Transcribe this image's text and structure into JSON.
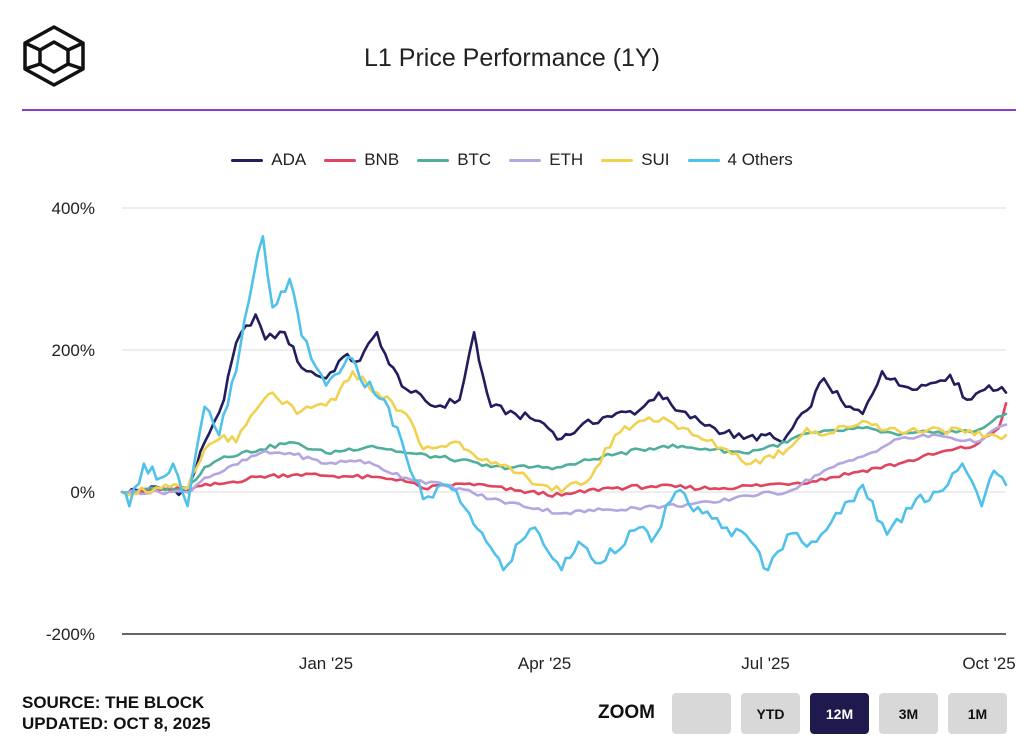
{
  "header": {
    "title": "L1 Price Performance (1Y)"
  },
  "footer": {
    "source": "SOURCE: THE BLOCK",
    "updated": "UPDATED: OCT 8, 2025"
  },
  "zoom": {
    "label": "ZOOM",
    "buttons": [
      {
        "label": "",
        "active": false
      },
      {
        "label": "YTD",
        "active": false
      },
      {
        "label": "12M",
        "active": true
      },
      {
        "label": "3M",
        "active": false
      },
      {
        "label": "1M",
        "active": false
      }
    ]
  },
  "colors": {
    "accent_rule": "#8a3ec6",
    "active_button": "#1f1a4d"
  },
  "chart_data": {
    "type": "line",
    "title": "L1 Price Performance (1Y)",
    "yaxis": {
      "ticks": [
        "400%",
        "200%",
        "0%",
        "-200%"
      ],
      "tick_values": [
        400,
        200,
        0,
        -200
      ],
      "ylim": [
        -200,
        400
      ],
      "grid": true
    },
    "xaxis": {
      "labels": [
        "Jan '25",
        "Apr '25",
        "Jul '25",
        "Oct '25"
      ],
      "label_dates": [
        "2025-01-01",
        "2025-04-01",
        "2025-07-01",
        "2025-10-01"
      ],
      "range": [
        "2024-10-09",
        "2025-10-08"
      ]
    },
    "legend_position": "top",
    "series": [
      {
        "name": "ADA",
        "color": "#231d5e",
        "points": [
          [
            "2024-10-09",
            0
          ],
          [
            "2024-10-25",
            5
          ],
          [
            "2024-11-05",
            0
          ],
          [
            "2024-11-12",
            70
          ],
          [
            "2024-11-20",
            130
          ],
          [
            "2024-11-25",
            210
          ],
          [
            "2024-12-03",
            250
          ],
          [
            "2024-12-07",
            215
          ],
          [
            "2024-12-15",
            225
          ],
          [
            "2024-12-22",
            175
          ],
          [
            "2025-01-01",
            160
          ],
          [
            "2025-01-08",
            190
          ],
          [
            "2025-01-15",
            185
          ],
          [
            "2025-01-22",
            225
          ],
          [
            "2025-01-27",
            180
          ],
          [
            "2025-02-03",
            145
          ],
          [
            "2025-02-15",
            120
          ],
          [
            "2025-02-25",
            130
          ],
          [
            "2025-03-03",
            225
          ],
          [
            "2025-03-05",
            185
          ],
          [
            "2025-03-10",
            120
          ],
          [
            "2025-03-20",
            110
          ],
          [
            "2025-03-30",
            100
          ],
          [
            "2025-04-08",
            75
          ],
          [
            "2025-04-15",
            90
          ],
          [
            "2025-04-25",
            105
          ],
          [
            "2025-05-10",
            115
          ],
          [
            "2025-05-18",
            140
          ],
          [
            "2025-05-25",
            115
          ],
          [
            "2025-06-10",
            90
          ],
          [
            "2025-06-22",
            75
          ],
          [
            "2025-07-01",
            80
          ],
          [
            "2025-07-08",
            70
          ],
          [
            "2025-07-18",
            115
          ],
          [
            "2025-07-25",
            160
          ],
          [
            "2025-08-03",
            120
          ],
          [
            "2025-08-10",
            110
          ],
          [
            "2025-08-18",
            170
          ],
          [
            "2025-08-25",
            150
          ],
          [
            "2025-09-05",
            150
          ],
          [
            "2025-09-15",
            165
          ],
          [
            "2025-09-22",
            130
          ],
          [
            "2025-10-01",
            150
          ],
          [
            "2025-10-08",
            140
          ]
        ]
      },
      {
        "name": "BNB",
        "color": "#e0445e",
        "points": [
          [
            "2024-10-09",
            0
          ],
          [
            "2024-11-05",
            5
          ],
          [
            "2024-11-20",
            12
          ],
          [
            "2024-12-05",
            22
          ],
          [
            "2024-12-20",
            25
          ],
          [
            "2025-01-10",
            22
          ],
          [
            "2025-02-01",
            18
          ],
          [
            "2025-02-10",
            5
          ],
          [
            "2025-03-01",
            12
          ],
          [
            "2025-03-20",
            2
          ],
          [
            "2025-04-08",
            -5
          ],
          [
            "2025-04-25",
            5
          ],
          [
            "2025-05-15",
            8
          ],
          [
            "2025-06-10",
            5
          ],
          [
            "2025-07-01",
            10
          ],
          [
            "2025-07-20",
            15
          ],
          [
            "2025-08-10",
            30
          ],
          [
            "2025-08-25",
            40
          ],
          [
            "2025-09-10",
            55
          ],
          [
            "2025-09-25",
            65
          ],
          [
            "2025-10-05",
            90
          ],
          [
            "2025-10-08",
            125
          ]
        ]
      },
      {
        "name": "BTC",
        "color": "#4fae9c",
        "points": [
          [
            "2024-10-09",
            0
          ],
          [
            "2024-10-25",
            5
          ],
          [
            "2024-11-05",
            5
          ],
          [
            "2024-11-12",
            35
          ],
          [
            "2024-11-20",
            50
          ],
          [
            "2024-12-05",
            60
          ],
          [
            "2024-12-17",
            70
          ],
          [
            "2025-01-01",
            55
          ],
          [
            "2025-01-20",
            65
          ],
          [
            "2025-02-03",
            55
          ],
          [
            "2025-02-25",
            45
          ],
          [
            "2025-03-10",
            35
          ],
          [
            "2025-04-08",
            35
          ],
          [
            "2025-04-25",
            50
          ],
          [
            "2025-05-20",
            65
          ],
          [
            "2025-06-10",
            60
          ],
          [
            "2025-06-22",
            55
          ],
          [
            "2025-07-10",
            70
          ],
          [
            "2025-07-15",
            80
          ],
          [
            "2025-08-10",
            90
          ],
          [
            "2025-08-25",
            80
          ],
          [
            "2025-09-10",
            85
          ],
          [
            "2025-09-25",
            85
          ],
          [
            "2025-10-08",
            110
          ]
        ]
      },
      {
        "name": "ETH",
        "color": "#b4a6e0",
        "points": [
          [
            "2024-10-09",
            0
          ],
          [
            "2024-11-05",
            0
          ],
          [
            "2024-11-12",
            20
          ],
          [
            "2024-11-20",
            30
          ],
          [
            "2024-12-05",
            55
          ],
          [
            "2024-12-17",
            55
          ],
          [
            "2025-01-01",
            40
          ],
          [
            "2025-01-15",
            45
          ],
          [
            "2025-02-03",
            20
          ],
          [
            "2025-02-25",
            5
          ],
          [
            "2025-03-10",
            -10
          ],
          [
            "2025-04-08",
            -30
          ],
          [
            "2025-04-25",
            -25
          ],
          [
            "2025-05-20",
            -20
          ],
          [
            "2025-06-10",
            -15
          ],
          [
            "2025-06-22",
            -5
          ],
          [
            "2025-07-10",
            0
          ],
          [
            "2025-07-25",
            30
          ],
          [
            "2025-08-10",
            50
          ],
          [
            "2025-08-25",
            75
          ],
          [
            "2025-09-10",
            80
          ],
          [
            "2025-09-25",
            70
          ],
          [
            "2025-10-08",
            95
          ]
        ]
      },
      {
        "name": "SUI",
        "color": "#f1d24e",
        "points": [
          [
            "2024-10-09",
            0
          ],
          [
            "2024-10-25",
            5
          ],
          [
            "2024-11-05",
            5
          ],
          [
            "2024-11-12",
            60
          ],
          [
            "2024-11-20",
            80
          ],
          [
            "2024-11-25",
            70
          ],
          [
            "2024-12-03",
            115
          ],
          [
            "2024-12-10",
            140
          ],
          [
            "2024-12-20",
            110
          ],
          [
            "2025-01-05",
            130
          ],
          [
            "2025-01-12",
            170
          ],
          [
            "2025-01-22",
            140
          ],
          [
            "2025-02-03",
            110
          ],
          [
            "2025-02-10",
            60
          ],
          [
            "2025-02-25",
            70
          ],
          [
            "2025-03-10",
            40
          ],
          [
            "2025-03-25",
            20
          ],
          [
            "2025-04-08",
            0
          ],
          [
            "2025-04-20",
            20
          ],
          [
            "2025-04-30",
            80
          ],
          [
            "2025-05-10",
            100
          ],
          [
            "2025-05-20",
            105
          ],
          [
            "2025-06-01",
            80
          ],
          [
            "2025-06-15",
            60
          ],
          [
            "2025-06-25",
            40
          ],
          [
            "2025-07-10",
            60
          ],
          [
            "2025-07-18",
            90
          ],
          [
            "2025-07-25",
            80
          ],
          [
            "2025-08-10",
            100
          ],
          [
            "2025-08-25",
            85
          ],
          [
            "2025-09-10",
            90
          ],
          [
            "2025-09-25",
            80
          ],
          [
            "2025-10-08",
            80
          ]
        ]
      },
      {
        "name": "4 Others",
        "color": "#4fc1ea",
        "points": [
          [
            "2024-10-09",
            0
          ],
          [
            "2024-10-12",
            -20
          ],
          [
            "2024-10-18",
            40
          ],
          [
            "2024-10-25",
            20
          ],
          [
            "2024-10-30",
            40
          ],
          [
            "2024-11-05",
            -20
          ],
          [
            "2024-11-12",
            120
          ],
          [
            "2024-11-18",
            80
          ],
          [
            "2024-11-25",
            170
          ],
          [
            "2024-12-02",
            300
          ],
          [
            "2024-12-06",
            360
          ],
          [
            "2024-12-10",
            260
          ],
          [
            "2024-12-17",
            300
          ],
          [
            "2024-12-22",
            220
          ],
          [
            "2025-01-01",
            150
          ],
          [
            "2025-01-10",
            190
          ],
          [
            "2025-01-15",
            160
          ],
          [
            "2025-01-25",
            130
          ],
          [
            "2025-02-03",
            50
          ],
          [
            "2025-02-10",
            -10
          ],
          [
            "2025-02-20",
            10
          ],
          [
            "2025-03-01",
            -30
          ],
          [
            "2025-03-08",
            -70
          ],
          [
            "2025-03-15",
            -110
          ],
          [
            "2025-03-22",
            -70
          ],
          [
            "2025-03-28",
            -50
          ],
          [
            "2025-04-08",
            -110
          ],
          [
            "2025-04-15",
            -70
          ],
          [
            "2025-04-22",
            -100
          ],
          [
            "2025-05-10",
            -50
          ],
          [
            "2025-05-15",
            -70
          ],
          [
            "2025-05-25",
            0
          ],
          [
            "2025-06-05",
            -30
          ],
          [
            "2025-06-15",
            -50
          ],
          [
            "2025-06-25",
            -70
          ],
          [
            "2025-07-02",
            -110
          ],
          [
            "2025-07-10",
            -60
          ],
          [
            "2025-07-20",
            -70
          ],
          [
            "2025-08-01",
            -30
          ],
          [
            "2025-08-10",
            10
          ],
          [
            "2025-08-20",
            -60
          ],
          [
            "2025-09-01",
            -10
          ],
          [
            "2025-09-10",
            0
          ],
          [
            "2025-09-20",
            40
          ],
          [
            "2025-09-28",
            -20
          ],
          [
            "2025-10-03",
            30
          ],
          [
            "2025-10-08",
            10
          ]
        ]
      }
    ]
  }
}
